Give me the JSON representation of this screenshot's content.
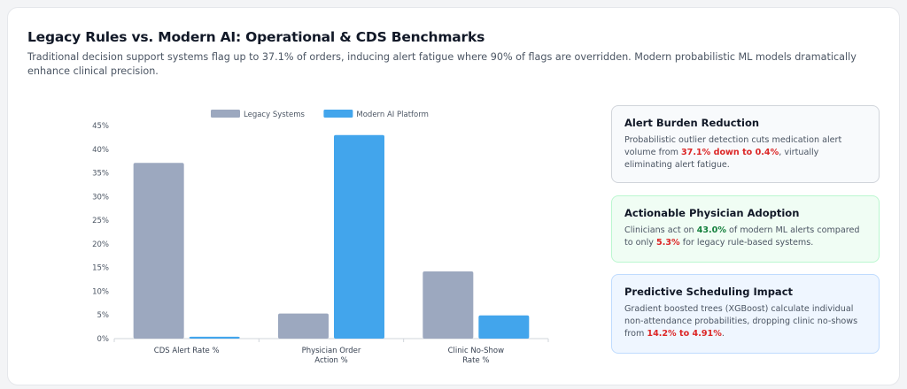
{
  "header": {
    "title": "Legacy Rules vs. Modern AI: Operational & CDS Benchmarks",
    "subtitle": "Traditional decision support systems flag up to 37.1% of orders, inducing alert fatigue where 90% of flags are overridden. Modern probabilistic ML models dramatically enhance clinical precision."
  },
  "chart_data": {
    "type": "bar",
    "categories": [
      [
        "CDS Alert Rate %"
      ],
      [
        "Physician Order",
        "Action %"
      ],
      [
        "Clinic No-Show",
        "Rate %"
      ]
    ],
    "series": [
      {
        "name": "Legacy Systems",
        "values": [
          37.1,
          5.3,
          14.2
        ],
        "color": "#9ca8bf"
      },
      {
        "name": "Modern AI Platform",
        "values": [
          0.4,
          43.0,
          4.91
        ],
        "color": "#42a5ec"
      }
    ],
    "ylim": [
      0,
      45
    ],
    "yticks": [
      "0%",
      "5%",
      "10%",
      "15%",
      "20%",
      "25%",
      "30%",
      "35%",
      "40%",
      "45%"
    ],
    "legend_position": "top-center",
    "grid": false
  },
  "insights": [
    {
      "title": "Alert Burden Reduction",
      "p1": "Probabilistic outlier detection cuts medication alert volume from ",
      "h1": "37.1% down to 0.4%",
      "p2": ", virtually eliminating alert fatigue."
    },
    {
      "title": "Actionable Physician Adoption",
      "p1": "Clinicians act on ",
      "h1": "43.0%",
      "p2": " of modern ML alerts compared to only ",
      "h2": "5.3%",
      "p3": " for legacy rule-based systems."
    },
    {
      "title": "Predictive Scheduling Impact",
      "p1": "Gradient boosted trees (XGBoost) calculate individual non-attendance probabilities, dropping clinic no-shows from ",
      "h1": "14.2% to 4.91%",
      "p2": "."
    }
  ]
}
